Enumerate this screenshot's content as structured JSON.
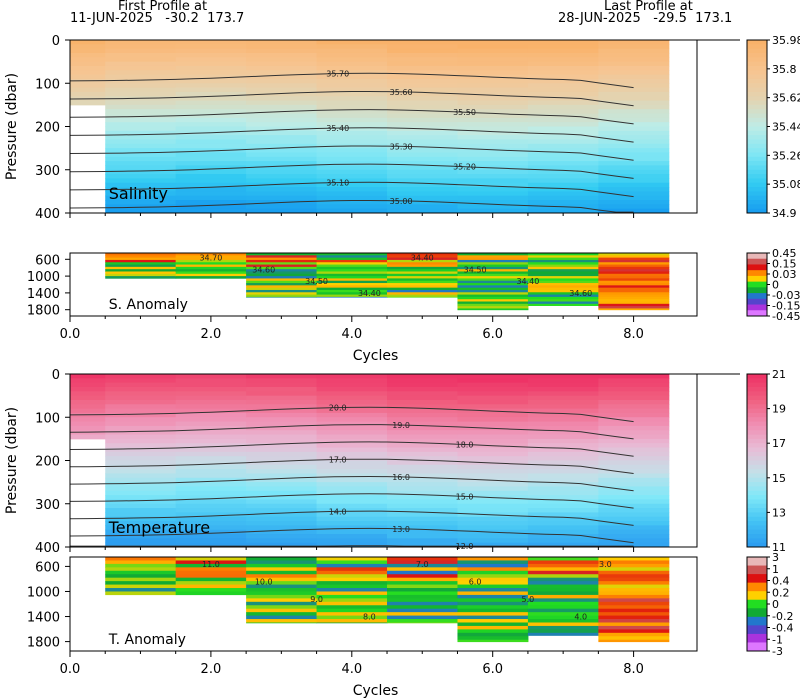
{
  "header": {
    "first_profile_label": "First Profile at",
    "first_profile_detail": "11-JUN-2025   -30.2  173.7",
    "last_profile_label": "Last Profile at",
    "last_profile_detail": "28-JUN-2025   -29.5  173.1"
  },
  "chart_data": [
    {
      "type": "heatmap",
      "panel": "salinity",
      "label": "Salinity",
      "ylabel": "Pressure (dbar)",
      "x_ticks": [
        "0.0",
        "2.0",
        "4.0",
        "6.0",
        "8.0"
      ],
      "xlim": [
        0,
        8.9
      ],
      "y_ticks": [
        "0",
        "100",
        "200",
        "300",
        "400"
      ],
      "ylim": [
        0,
        400
      ],
      "colorbar": [
        "35.98",
        "35.8",
        "35.62",
        "35.44",
        "35.26",
        "35.08",
        "34.9"
      ],
      "colorbar_colors": [
        "#f9b26a",
        "#f7c490",
        "#e4d3b0",
        "#bfece6",
        "#7fe6f4",
        "#33ccf2",
        "#199ff0"
      ],
      "contours": [
        "35.70",
        "35.60",
        "35.50",
        "35.40",
        "35.30",
        "35.20",
        "35.10",
        "35.00"
      ]
    },
    {
      "type": "heatmap",
      "panel": "salinity_anomaly",
      "label": "S. Anomaly",
      "x_ticks": [
        "0.0",
        "2.0",
        "4.0",
        "6.0",
        "8.0"
      ],
      "xlabel": "Cycles",
      "y_ticks": [
        "600",
        "1000",
        "1400",
        "1800"
      ],
      "ylim": [
        450,
        1950
      ],
      "colorbar": [
        "0.45",
        "0.15",
        "0.03",
        "0",
        "-0.03",
        "-0.15",
        "-0.45"
      ],
      "colorbar_colors": [
        "#e8b8b8",
        "#cc5555",
        "#dd1010",
        "#ff8800",
        "#ffd000",
        "#22dd22",
        "#11aa33",
        "#2277cc",
        "#5544cc",
        "#aa33dd",
        "#dd77ff"
      ],
      "contours": [
        "34.70",
        "34.60",
        "34.50",
        "34.40",
        "34.40",
        "34.50",
        "34.40",
        "34.60"
      ]
    },
    {
      "type": "heatmap",
      "panel": "temperature",
      "label": "Temperature",
      "ylabel": "Pressure (dbar)",
      "x_ticks": [
        "0.0",
        "2.0",
        "4.0",
        "6.0",
        "8.0"
      ],
      "xlim": [
        0,
        8.9
      ],
      "y_ticks": [
        "0",
        "100",
        "200",
        "300",
        "400"
      ],
      "ylim": [
        0,
        400
      ],
      "colorbar": [
        "21",
        "19",
        "17",
        "15",
        "13",
        "11"
      ],
      "colorbar_colors": [
        "#ee3366",
        "#f06080",
        "#f08eb2",
        "#e8bcd6",
        "#c4e0e8",
        "#80e8f8",
        "#44c4f4",
        "#2d9ef0"
      ],
      "contours": [
        "20.0",
        "19.0",
        "18.0",
        "17.0",
        "16.0",
        "15.0",
        "14.0",
        "13.0",
        "12.0"
      ]
    },
    {
      "type": "heatmap",
      "panel": "temperature_anomaly",
      "label": "T. Anomaly",
      "x_ticks": [
        "0.0",
        "2.0",
        "4.0",
        "6.0",
        "8.0"
      ],
      "xlabel": "Cycles",
      "y_ticks": [
        "600",
        "1000",
        "1400",
        "1800"
      ],
      "ylim": [
        450,
        1950
      ],
      "colorbar": [
        "3",
        "1",
        "0.4",
        "0.2",
        "0",
        "-0.2",
        "-0.4",
        "-1",
        "-3"
      ],
      "colorbar_colors": [
        "#e8b8b8",
        "#cc5555",
        "#dd1010",
        "#ff8800",
        "#ffd000",
        "#22dd22",
        "#11aa33",
        "#2277cc",
        "#5544cc",
        "#aa33dd",
        "#dd77ff"
      ],
      "contours": [
        "11.0",
        "10.0",
        "9.0",
        "8.0",
        "7.0",
        "6.0",
        "5.0",
        "4.0",
        "3.0"
      ]
    }
  ]
}
